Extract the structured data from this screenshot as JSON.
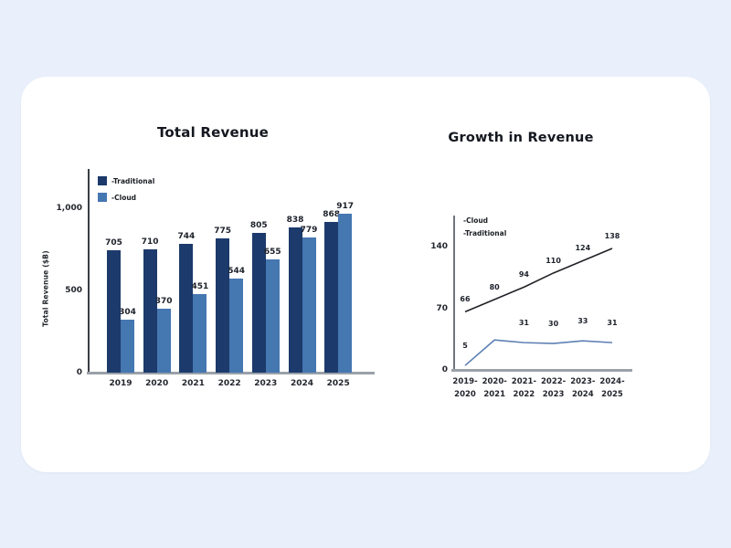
{
  "page": {
    "background_color": "#e9f0fb",
    "card_color": "#ffffff"
  },
  "chart_data": [
    {
      "id": "total-revenue",
      "type": "bar",
      "title": "Total Revenue",
      "xlabel": "",
      "ylabel": "Total Revenue ($B)",
      "categories": [
        "2019",
        "2020",
        "2021",
        "2022",
        "2023",
        "2024",
        "2025"
      ],
      "series": [
        {
          "name": "-Traditional",
          "color": "#1c3a6b",
          "values": [
            705,
            710,
            744,
            775,
            805,
            838,
            868
          ]
        },
        {
          "name": "-Cloud",
          "color": "#4577b1",
          "values": [
            304,
            370,
            451,
            544,
            655,
            779,
            917
          ]
        }
      ],
      "y_ticks": [
        {
          "label": "1,000",
          "value": 1000
        },
        {
          "label": "500",
          "value": 500
        },
        {
          "label": "0",
          "value": 0
        }
      ],
      "ylim": [
        0,
        1000
      ],
      "grid": false,
      "legend_position": "top-left",
      "bar_labels_visible": true
    },
    {
      "id": "growth-in-revenue",
      "type": "line",
      "title": "Growth in Revenue",
      "xlabel": "",
      "ylabel": "",
      "categories_top": [
        "2019-",
        "2020-",
        "2021-",
        "2022-",
        "2023-",
        "2024-"
      ],
      "categories_bottom": [
        "2020",
        "2021",
        "2022",
        "2023",
        "2024",
        "2025"
      ],
      "series": [
        {
          "name": "-Cloud",
          "color": "#202226",
          "values": [
            66,
            80,
            94,
            110,
            124,
            138
          ],
          "labels": [
            "66",
            "80",
            "94",
            "110",
            "124",
            "138"
          ]
        },
        {
          "name": "-Traditional",
          "color": "#5d80b4",
          "values": [
            5,
            34,
            31,
            30,
            33,
            31
          ],
          "labels": [
            "5",
            "",
            "31",
            "30",
            "33",
            "31"
          ]
        }
      ],
      "y_ticks": [
        {
          "label": "140",
          "value": 140
        },
        {
          "label": "70",
          "value": 70
        },
        {
          "label": "0",
          "value": 0
        }
      ],
      "ylim": [
        0,
        140
      ],
      "grid": false,
      "legend_position": "top-left",
      "point_labels_visible": true
    }
  ]
}
